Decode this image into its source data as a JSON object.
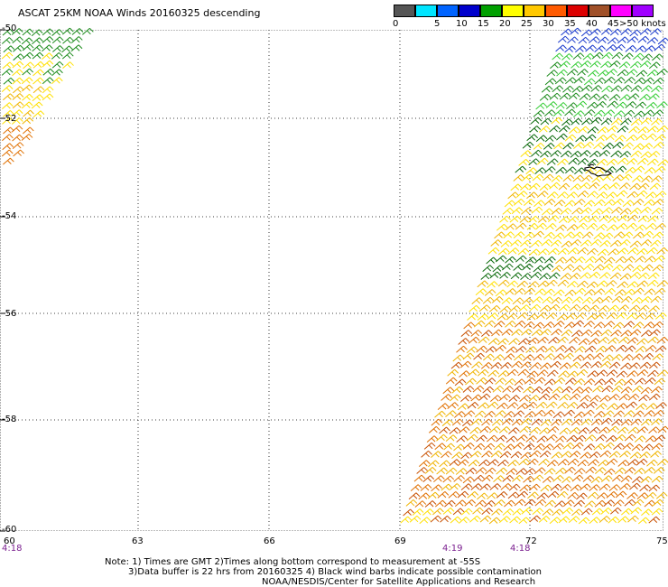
{
  "title": "ASCAT 25KM NOAA Winds 20160325 descending",
  "speed_scale": {
    "labels": [
      "0",
      "5",
      "10",
      "15",
      "20",
      "25",
      "30",
      "35",
      "40",
      "45",
      ">50 knots"
    ],
    "colors": [
      "#555555",
      "#00e5ff",
      "#0064ff",
      "#0000cc",
      "#00a000",
      "#ffff00",
      "#ffc800",
      "#ff5a00",
      "#dc0000",
      "#a05028",
      "#ff00ff",
      "#a000ff"
    ]
  },
  "axes": {
    "lat_labels": [
      "-50",
      "-52",
      "-54",
      "-56",
      "-58",
      "-60"
    ],
    "lon_labels": [
      "60",
      "63",
      "66",
      "69",
      "72",
      "75"
    ]
  },
  "times": [
    "4:18",
    "4:19",
    "4:18"
  ],
  "notes": [
    "Note: 1) Times are GMT 2)Times along bottom correspond to measurement at -55S",
    "3)Data buffer is 22 hrs from 20160325 4) Black wind barbs indicate possible contamination",
    "NOAA/NESDIS/Center for Satellite Applications and Research"
  ],
  "colors": {
    "grid": "#000000",
    "barb_green": "#1a8a1a",
    "barb_darkgreen": "#0a6a0a",
    "barb_lightgreen": "#33cc33",
    "barb_blue": "#1a3acc",
    "barb_yellow": "#ffe000",
    "barb_gold": "#f0b400",
    "barb_orange": "#e07000",
    "barb_darkorange": "#c85000",
    "coast": "#000000"
  }
}
